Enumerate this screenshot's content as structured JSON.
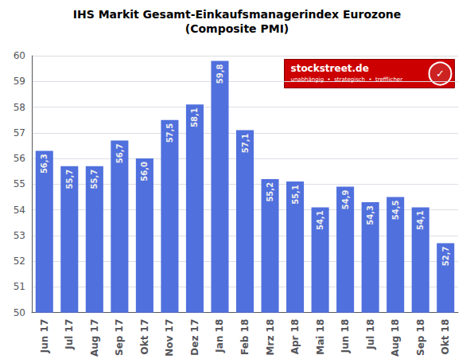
{
  "chart_data": {
    "type": "bar",
    "title": "IHS Markit Gesamt-Einkaufsmanagerindex Eurozone",
    "subtitle": "(Composite PMI)",
    "categories": [
      "Jun 17",
      "Jul 17",
      "Aug 17",
      "Sep 17",
      "Okt 17",
      "Nov 17",
      "Dez 17",
      "Jan 18",
      "Feb 18",
      "Mrz 18",
      "Apr 18",
      "Mai 18",
      "Jun 18",
      "Jul 18",
      "Aug 18",
      "Sep 18",
      "Okt 18"
    ],
    "values": [
      56.3,
      55.7,
      55.7,
      56.7,
      56.0,
      57.5,
      58.1,
      59.8,
      57.1,
      55.2,
      55.1,
      54.1,
      54.9,
      54.3,
      54.5,
      54.1,
      52.7
    ],
    "value_labels": [
      "56,3",
      "55,7",
      "55,7",
      "56,7",
      "56,0",
      "57,5",
      "58,1",
      "59,8",
      "57,1",
      "55,2",
      "55,1",
      "54,1",
      "54,9",
      "54,3",
      "54,5",
      "54,1",
      "52,7"
    ],
    "data_labels": true,
    "ylim": [
      50,
      60
    ],
    "yticks": [
      50,
      51,
      52,
      53,
      54,
      55,
      56,
      57,
      58,
      59,
      60
    ],
    "grid": true,
    "annotations": [
      "stockstreet.de",
      "unabhängig  •  strategisch  •  trefflicher",
      "✓"
    ]
  }
}
